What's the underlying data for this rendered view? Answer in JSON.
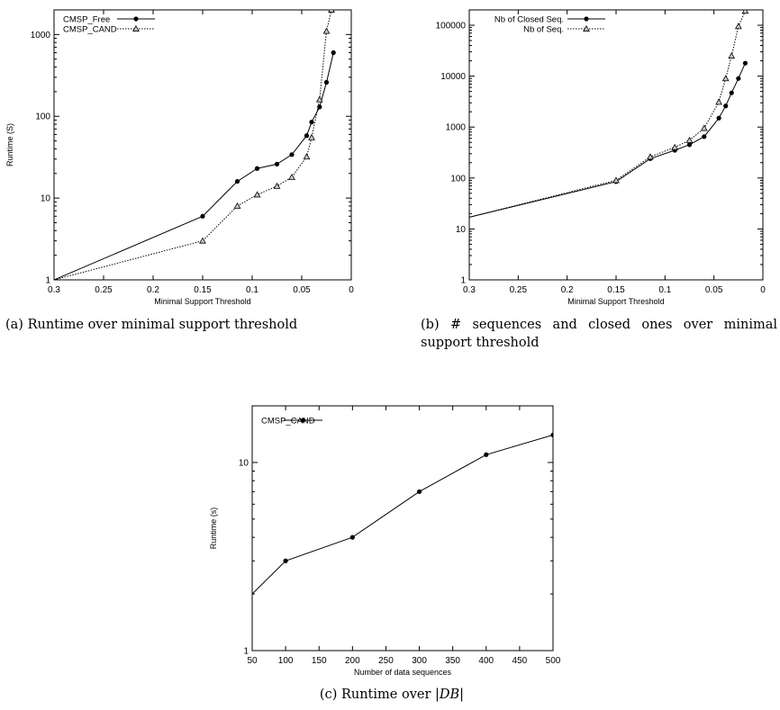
{
  "chart_data": [
    {
      "type": "line",
      "title": "",
      "xlabel": "Minimal Support Threshold",
      "ylabel": "Runtime (S)",
      "x_reversed": true,
      "y_scale": "log",
      "xlim": [
        0,
        0.3
      ],
      "ylim": [
        1,
        2000
      ],
      "x_ticks": [
        0.3,
        0.25,
        0.2,
        0.15,
        0.1,
        0.05,
        0
      ],
      "x_tick_labels": [
        "0.3",
        "0.25",
        "0.2",
        "0.15",
        "0.1",
        "0.05",
        "0"
      ],
      "y_ticks": [
        1,
        10,
        100,
        1000
      ],
      "y_tick_labels": [
        "1",
        "10",
        "100",
        "1000"
      ],
      "legend_position": "top-left",
      "series": [
        {
          "name": "CMSP_Free",
          "style": "solid",
          "marker": "circle",
          "x": [
            0.3,
            0.15,
            0.115,
            0.095,
            0.075,
            0.06,
            0.045,
            0.04,
            0.032,
            0.025,
            0.018
          ],
          "y": [
            1,
            6,
            16,
            23,
            26,
            34,
            58,
            85,
            130,
            260,
            600
          ]
        },
        {
          "name": "CMSP_CAND",
          "style": "dotted",
          "marker": "triangle",
          "x": [
            0.3,
            0.15,
            0.115,
            0.095,
            0.075,
            0.06,
            0.045,
            0.04,
            0.032,
            0.025,
            0.02
          ],
          "y": [
            1,
            3,
            8,
            11,
            14,
            18,
            32,
            55,
            160,
            1100,
            2000
          ]
        }
      ]
    },
    {
      "type": "line",
      "title": "",
      "xlabel": "Minimal Support Threshold",
      "ylabel": "",
      "x_reversed": true,
      "y_scale": "log",
      "xlim": [
        0,
        0.3
      ],
      "ylim": [
        1,
        200000
      ],
      "x_ticks": [
        0.3,
        0.25,
        0.2,
        0.15,
        0.1,
        0.05,
        0
      ],
      "x_tick_labels": [
        "0.3",
        "0.25",
        "0.2",
        "0.15",
        "0.1",
        "0.05",
        "0"
      ],
      "y_ticks": [
        1,
        10,
        100,
        1000,
        10000,
        100000
      ],
      "y_tick_labels": [
        "1",
        "10",
        "100",
        "1000",
        "10000",
        "100000"
      ],
      "legend_position": "top-right",
      "series": [
        {
          "name": "Nb of Closed Seq.",
          "style": "solid",
          "marker": "circle",
          "x": [
            0.3,
            0.15,
            0.115,
            0.09,
            0.075,
            0.06,
            0.045,
            0.038,
            0.032,
            0.025,
            0.018
          ],
          "y": [
            17,
            85,
            240,
            350,
            450,
            650,
            1500,
            2600,
            4700,
            9000,
            18000
          ]
        },
        {
          "name": "Nb of Seq.",
          "style": "dotted",
          "marker": "triangle",
          "x": [
            0.3,
            0.15,
            0.115,
            0.09,
            0.075,
            0.06,
            0.045,
            0.038,
            0.032,
            0.025,
            0.018
          ],
          "y": [
            17,
            90,
            260,
            400,
            550,
            950,
            3100,
            9000,
            25000,
            95000,
            190000
          ]
        }
      ]
    },
    {
      "type": "line",
      "title": "",
      "xlabel": "Number of data sequences",
      "ylabel": "Runtime (s)",
      "y_scale": "log",
      "xlim": [
        50,
        500
      ],
      "ylim": [
        1,
        20
      ],
      "x_ticks": [
        50,
        100,
        150,
        200,
        250,
        300,
        350,
        400,
        450,
        500
      ],
      "x_tick_labels": [
        "50",
        "100",
        "150",
        "200",
        "250",
        "300",
        "350",
        "400",
        "450",
        "500"
      ],
      "y_ticks": [
        1,
        10
      ],
      "y_tick_labels": [
        "1",
        "10"
      ],
      "legend_position": "top-left",
      "series": [
        {
          "name": "CMSP_CAND",
          "style": "solid",
          "marker": "circle",
          "x": [
            50,
            100,
            200,
            300,
            400,
            500
          ],
          "y": [
            2,
            3,
            4,
            7,
            11,
            14
          ]
        }
      ]
    }
  ],
  "captions": {
    "a": "(a)  Runtime  over  minimal  support threshold",
    "b": "(b) # sequences and closed ones over minimal support threshold",
    "c": "(c) Runtime over |DB|"
  }
}
